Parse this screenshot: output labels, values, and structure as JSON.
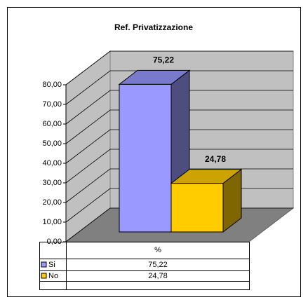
{
  "chart_data": {
    "type": "bar",
    "title": "Ref. Privatizzazione",
    "categories": [
      "%"
    ],
    "series": [
      {
        "name": "Si",
        "color": "#9999ff",
        "values": [
          75.22
        ],
        "value_labels": [
          "75,22"
        ]
      },
      {
        "name": "No",
        "color": "#ffcc00",
        "values": [
          24.78
        ],
        "value_labels": [
          "24,78"
        ]
      }
    ],
    "ylim": [
      0,
      80
    ],
    "yticks": [
      {
        "value": 0,
        "label": "0,00"
      },
      {
        "value": 10,
        "label": "10,00"
      },
      {
        "value": 20,
        "label": "20,00"
      },
      {
        "value": 30,
        "label": "30,00"
      },
      {
        "value": 40,
        "label": "40,00"
      },
      {
        "value": 50,
        "label": "50,00"
      },
      {
        "value": 60,
        "label": "60,00"
      },
      {
        "value": 70,
        "label": "70,00"
      },
      {
        "value": 80,
        "label": "80,00"
      }
    ],
    "grid": true
  }
}
